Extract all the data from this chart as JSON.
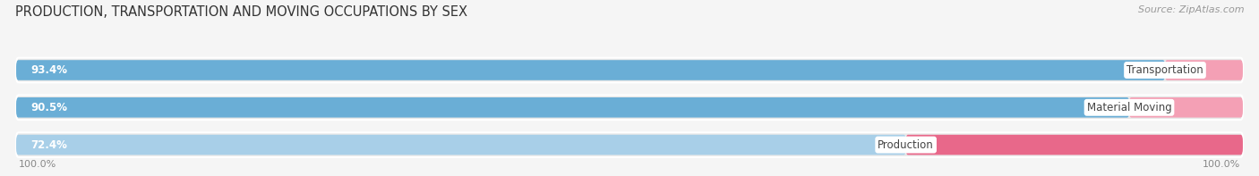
{
  "title": "PRODUCTION, TRANSPORTATION AND MOVING OCCUPATIONS BY SEX",
  "source": "Source: ZipAtlas.com",
  "categories": [
    "Transportation",
    "Material Moving",
    "Production"
  ],
  "male_values": [
    93.4,
    90.5,
    72.4
  ],
  "female_values": [
    6.6,
    9.5,
    27.6
  ],
  "male_color_dark": "#6aaed6",
  "male_color_light": "#a8cfe8",
  "female_color_light": "#f4a0b5",
  "female_color_dark": "#e8688a",
  "bar_bg_color": "#e8e8e8",
  "title_fontsize": 10.5,
  "source_fontsize": 8,
  "label_fontsize": 8.5,
  "pct_fontsize": 8.5,
  "bar_height": 0.52,
  "background_color": "#f5f5f5",
  "legend_male_color": "#7bafd4",
  "legend_female_color": "#f4a0b5",
  "center_label_color": "#444444",
  "male_pct_color": "white",
  "female_pct_color": "#444444",
  "bottom_pct_color": "#888888",
  "source_color": "#999999",
  "title_color": "#333333"
}
